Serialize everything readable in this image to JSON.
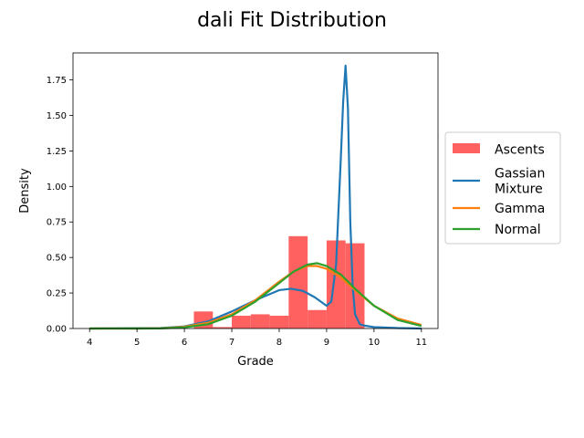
{
  "chart_data": {
    "type": "bar",
    "title": "dali Fit Distribution",
    "xlabel": "Grade",
    "ylabel": "Density",
    "xlim": [
      3.65,
      11.35
    ],
    "ylim": [
      0,
      1.94
    ],
    "xticks": [
      4,
      5,
      6,
      7,
      8,
      9,
      10,
      11
    ],
    "yticks": [
      0.0,
      0.25,
      0.5,
      0.75,
      1.0,
      1.25,
      1.5,
      1.75
    ],
    "ytick_labels": [
      "0.00",
      "0.25",
      "0.50",
      "0.75",
      "1.00",
      "1.25",
      "1.50",
      "1.75"
    ],
    "legend_position": "center-right-outside",
    "histogram": {
      "name": "Ascents",
      "color": "#ff6161",
      "bins": [
        {
          "x0": 6.2,
          "x1": 6.6,
          "value": 0.12
        },
        {
          "x0": 6.6,
          "x1": 7.0,
          "value": 0.01
        },
        {
          "x0": 7.0,
          "x1": 7.4,
          "value": 0.09
        },
        {
          "x0": 7.4,
          "x1": 7.8,
          "value": 0.1
        },
        {
          "x0": 7.8,
          "x1": 8.2,
          "value": 0.09
        },
        {
          "x0": 8.2,
          "x1": 8.6,
          "value": 0.65
        },
        {
          "x0": 8.6,
          "x1": 9.0,
          "value": 0.13
        },
        {
          "x0": 9.0,
          "x1": 9.4,
          "value": 0.62
        },
        {
          "x0": 9.4,
          "x1": 9.8,
          "value": 0.6
        }
      ]
    },
    "series": [
      {
        "name": "Gassian\nMixture",
        "color": "#1f77b4",
        "x": [
          4.0,
          5.5,
          6.0,
          6.5,
          7.0,
          7.5,
          8.0,
          8.25,
          8.5,
          8.75,
          9.0,
          9.1,
          9.2,
          9.3,
          9.35,
          9.4,
          9.45,
          9.5,
          9.55,
          9.6,
          9.7,
          9.8,
          10.0,
          10.5,
          11.0
        ],
        "y": [
          0.0,
          0.003,
          0.015,
          0.05,
          0.12,
          0.2,
          0.27,
          0.28,
          0.265,
          0.22,
          0.16,
          0.19,
          0.45,
          1.2,
          1.6,
          1.85,
          1.55,
          0.75,
          0.3,
          0.1,
          0.03,
          0.02,
          0.01,
          0.003,
          0.0
        ]
      },
      {
        "name": "Gamma",
        "color": "#ff7f0e",
        "x": [
          4.0,
          5.0,
          5.5,
          6.0,
          6.5,
          7.0,
          7.5,
          8.0,
          8.3,
          8.6,
          8.8,
          9.0,
          9.3,
          9.6,
          10.0,
          10.5,
          11.0
        ],
        "y": [
          0.0,
          0.0,
          0.002,
          0.012,
          0.04,
          0.1,
          0.2,
          0.33,
          0.4,
          0.44,
          0.44,
          0.42,
          0.36,
          0.27,
          0.16,
          0.07,
          0.025
        ]
      },
      {
        "name": "Normal",
        "color": "#2ca02c",
        "x": [
          4.0,
          5.0,
          5.5,
          6.0,
          6.5,
          7.0,
          7.5,
          8.0,
          8.3,
          8.6,
          8.8,
          9.0,
          9.3,
          9.6,
          10.0,
          10.5,
          11.0
        ],
        "y": [
          0.0,
          0.0,
          0.001,
          0.008,
          0.03,
          0.09,
          0.19,
          0.32,
          0.4,
          0.45,
          0.46,
          0.44,
          0.38,
          0.28,
          0.16,
          0.06,
          0.018
        ]
      }
    ]
  }
}
